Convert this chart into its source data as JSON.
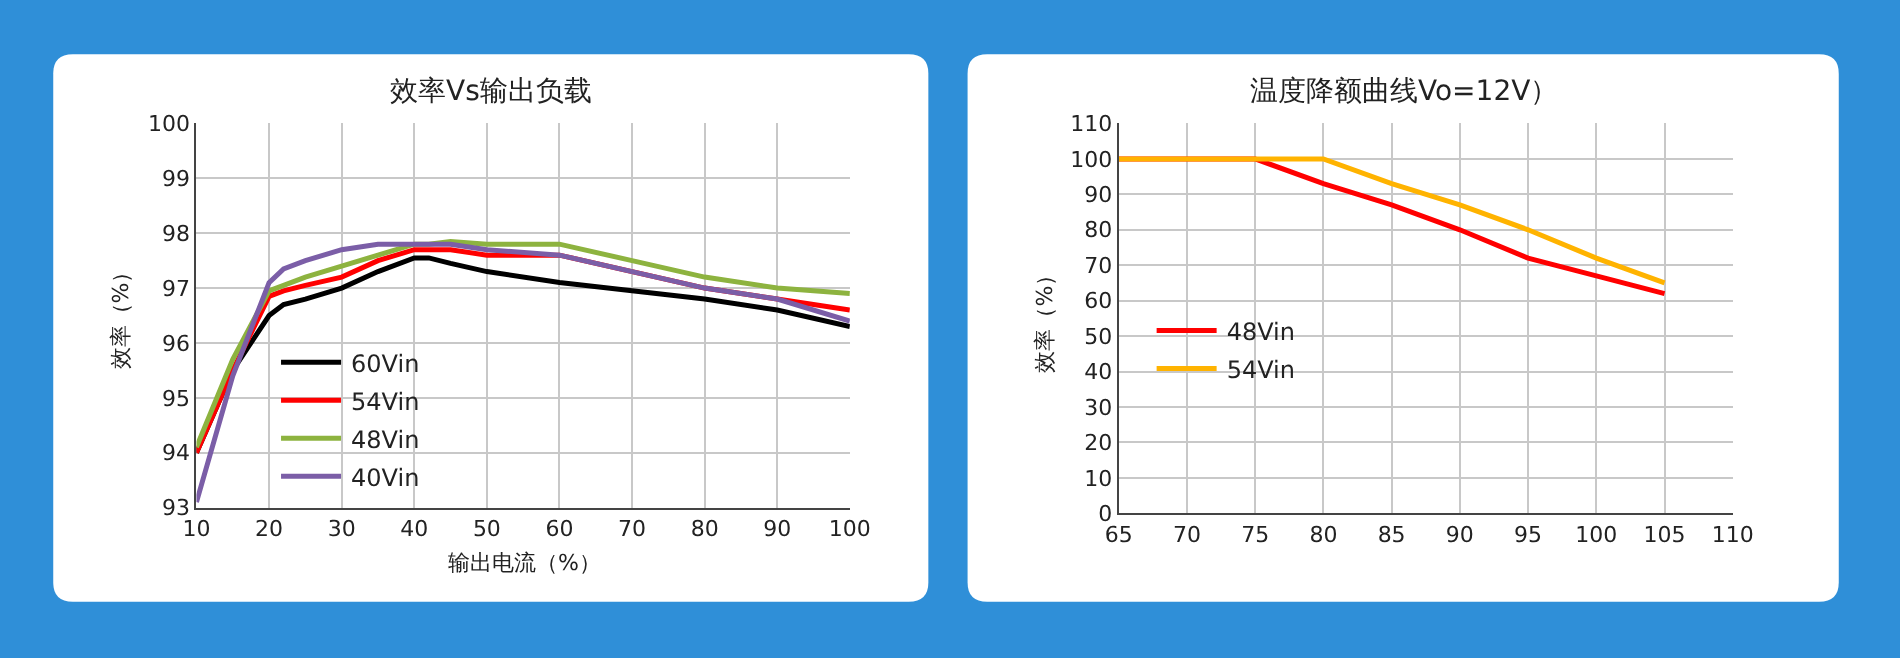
{
  "chart_data": [
    {
      "type": "line",
      "title": "效率Vs输出负载",
      "xlabel": "输出电流（%）",
      "ylabel": "效率（%）",
      "xlim": [
        10,
        100
      ],
      "xticks": [
        10,
        20,
        30,
        40,
        50,
        60,
        70,
        80,
        90,
        100
      ],
      "ylim": [
        93,
        100
      ],
      "yticks": [
        93,
        94,
        95,
        96,
        97,
        98,
        99,
        100
      ],
      "grid": true,
      "legend": "bottom left",
      "marker": "none",
      "line_style": "solid",
      "x": [
        10,
        15,
        20,
        22,
        25,
        30,
        35,
        40,
        42,
        45,
        50,
        60,
        70,
        80,
        90,
        100
      ],
      "series": [
        {
          "name": "60Vin",
          "color": "#000000",
          "values": [
            94.0,
            95.5,
            96.5,
            96.7,
            96.8,
            97.0,
            97.3,
            97.55,
            97.55,
            97.45,
            97.3,
            97.1,
            96.95,
            96.8,
            96.6,
            96.3
          ]
        },
        {
          "name": "54Vin",
          "color": "#ff0000",
          "values": [
            94.0,
            95.5,
            96.85,
            96.95,
            97.05,
            97.2,
            97.5,
            97.7,
            97.7,
            97.7,
            97.6,
            97.6,
            97.3,
            97.0,
            96.8,
            96.6
          ]
        },
        {
          "name": "48Vin",
          "color": "#8db33f",
          "values": [
            94.1,
            95.7,
            96.95,
            97.05,
            97.2,
            97.4,
            97.6,
            97.8,
            97.8,
            97.85,
            97.8,
            97.8,
            97.5,
            97.2,
            97.0,
            96.9
          ]
        },
        {
          "name": "40Vin",
          "color": "#7b5ea7",
          "values": [
            93.1,
            95.4,
            97.1,
            97.35,
            97.5,
            97.7,
            97.8,
            97.8,
            97.8,
            97.8,
            97.7,
            97.6,
            97.3,
            97.0,
            96.8,
            96.4
          ]
        }
      ]
    },
    {
      "type": "line",
      "title": "温度降额曲线Vo=12V）",
      "ylabel": "效率（%）",
      "xlim": [
        65,
        110
      ],
      "xticks": [
        65,
        70,
        75,
        80,
        85,
        90,
        95,
        100,
        105,
        110
      ],
      "ylim": [
        0,
        110
      ],
      "yticks": [
        0,
        10,
        20,
        30,
        40,
        50,
        60,
        70,
        80,
        90,
        100,
        110
      ],
      "grid": true,
      "legend": "left",
      "marker": "none",
      "line_style": "solid",
      "x": [
        65,
        70,
        75,
        80,
        85,
        90,
        95,
        100,
        105
      ],
      "series": [
        {
          "name": "48Vin",
          "color": "#ff0000",
          "values": [
            100,
            100,
            100,
            93,
            87,
            80,
            72,
            67,
            62
          ]
        },
        {
          "name": "54Vin",
          "color": "#ffb300",
          "values": [
            100,
            100,
            100,
            100,
            93,
            87,
            80,
            72,
            65
          ]
        }
      ]
    }
  ]
}
